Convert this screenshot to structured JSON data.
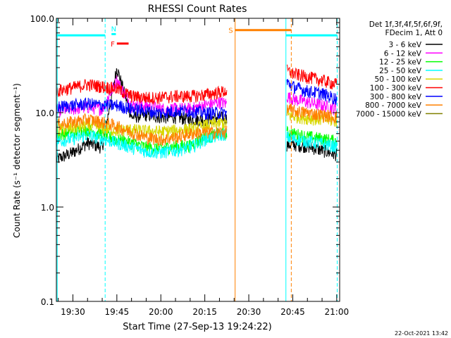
{
  "chart_data": {
    "type": "line",
    "title": "RHESSI Count Rates",
    "xlabel": "Start Time (27-Sep-13 19:24:22)",
    "ylabel": "Count Rate (s⁻¹ detector segment⁻¹)",
    "ylog": true,
    "ylim": [
      0.1,
      100
    ],
    "xlim": [
      "19:24:22",
      "21:01:00"
    ],
    "x_unit": "UT time (HH:MM)",
    "xticks": [
      "19:30",
      "19:45",
      "20:00",
      "20:15",
      "20:30",
      "20:45",
      "21:00"
    ],
    "yticks": [
      "0.1",
      "1.0",
      "10.0",
      "100.0"
    ],
    "grid": false,
    "legend_position": "right",
    "legend_header": [
      "Det 1f,3f,4f,5f,6f,9f,",
      "FDecim 1, Att 0"
    ],
    "timestamp": "22-Oct-2021 13:42",
    "series": [
      {
        "name": "3 - 6 keV",
        "color": "#000000",
        "x": [
          "19:24:22",
          "19:30",
          "19:35",
          "19:40",
          "19:45",
          "19:50",
          "19:55",
          "20:00",
          "20:05",
          "20:10",
          "20:15",
          "20:20",
          "20:22:30",
          "20:43",
          "20:45",
          "20:50",
          "20:55",
          "21:00"
        ],
        "y": [
          3.2,
          3.8,
          4.8,
          4.3,
          30,
          9,
          9.5,
          9,
          9,
          8.5,
          8.5,
          9,
          8.6,
          4.6,
          4.6,
          4.4,
          4,
          3.6
        ]
      },
      {
        "name": "6 - 12 keV",
        "color": "#ff00ff",
        "x": [
          "19:24:22",
          "19:30",
          "19:35",
          "19:40",
          "19:45",
          "19:50",
          "19:55",
          "20:00",
          "20:05",
          "20:10",
          "20:15",
          "20:20",
          "20:22:30",
          "20:43",
          "20:45",
          "20:50",
          "20:55",
          "21:00"
        ],
        "y": [
          10.5,
          11,
          11.5,
          11,
          22,
          12,
          12,
          11,
          11,
          11,
          12,
          13,
          12.5,
          15,
          14,
          13,
          12,
          11
        ]
      },
      {
        "name": "12 - 25 keV",
        "color": "#00ff00",
        "x": [
          "19:24:22",
          "19:30",
          "19:35",
          "19:40",
          "19:45",
          "19:50",
          "19:55",
          "20:00",
          "20:05",
          "20:10",
          "20:15",
          "20:20",
          "20:22:30",
          "20:43",
          "20:45",
          "20:50",
          "20:55",
          "21:00"
        ],
        "y": [
          5.8,
          6.2,
          6.6,
          6.0,
          5.2,
          4.8,
          4.3,
          4.2,
          4.4,
          4.5,
          5.5,
          6.0,
          6.1,
          6.2,
          6.0,
          5.6,
          5.3,
          5.0
        ]
      },
      {
        "name": "25 - 50 keV",
        "color": "#00ffff",
        "x": [
          "19:24:22",
          "19:30",
          "19:35",
          "19:40",
          "19:45",
          "19:50",
          "19:55",
          "20:00",
          "20:05",
          "20:10",
          "20:15",
          "20:20",
          "20:22:30",
          "20:43",
          "20:45",
          "20:50",
          "20:55",
          "21:00"
        ],
        "y": [
          5.0,
          5.3,
          5.8,
          5.3,
          4.8,
          4.3,
          3.9,
          3.8,
          4.0,
          4.3,
          5.2,
          5.8,
          6.0,
          5.5,
          5.3,
          5.0,
          4.7,
          4.4
        ]
      },
      {
        "name": "50 - 100 keV",
        "color": "#d8d800",
        "x": [
          "19:24:22",
          "19:30",
          "19:35",
          "19:40",
          "19:45",
          "19:50",
          "19:55",
          "20:00",
          "20:05",
          "20:10",
          "20:15",
          "20:20",
          "20:22:30",
          "20:43",
          "20:45",
          "20:50",
          "20:55",
          "21:00"
        ],
        "y": [
          6.5,
          7.0,
          7.4,
          6.9,
          6.5,
          6.6,
          6.4,
          6.3,
          6.5,
          6.7,
          7.3,
          7.8,
          7.9,
          9.5,
          9.2,
          8.8,
          8.5,
          8.2
        ]
      },
      {
        "name": "100 - 300 keV",
        "color": "#ff0000",
        "x": [
          "19:24:22",
          "19:30",
          "19:35",
          "19:40",
          "19:45",
          "19:50",
          "19:55",
          "20:00",
          "20:05",
          "20:10",
          "20:15",
          "20:20",
          "20:22:30",
          "20:43",
          "20:45",
          "20:50",
          "20:55",
          "21:00"
        ],
        "y": [
          17,
          18.5,
          20,
          19,
          18,
          15,
          14.5,
          14.5,
          15,
          15,
          15.5,
          16.5,
          17,
          28,
          26,
          24,
          22,
          20
        ]
      },
      {
        "name": "300 - 800 keV",
        "color": "#0000ff",
        "x": [
          "19:24:22",
          "19:30",
          "19:35",
          "19:40",
          "19:45",
          "19:50",
          "19:55",
          "20:00",
          "20:05",
          "20:10",
          "20:15",
          "20:20",
          "20:22:30",
          "20:43",
          "20:45",
          "20:50",
          "20:55",
          "21:00"
        ],
        "y": [
          11.5,
          12,
          12.5,
          12,
          12,
          11,
          10.5,
          10,
          10.5,
          10.5,
          10,
          10,
          10,
          21,
          19,
          17,
          16,
          14
        ]
      },
      {
        "name": "800 - 7000 keV",
        "color": "#ff8000",
        "x": [
          "19:24:22",
          "19:30",
          "19:35",
          "19:40",
          "19:45",
          "19:50",
          "19:55",
          "20:00",
          "20:05",
          "20:10",
          "20:15",
          "20:20",
          "20:22:30",
          "20:43",
          "20:45",
          "20:50",
          "20:55",
          "21:00"
        ],
        "y": [
          7.5,
          8,
          8.5,
          8,
          7.2,
          6.2,
          5.5,
          5.2,
          5.5,
          6,
          6.2,
          6.2,
          6.3,
          11,
          10.5,
          10,
          9.5,
          9
        ]
      },
      {
        "name": "7000 - 15000 keV",
        "color": "#808000",
        "x": [],
        "y": []
      }
    ],
    "annotations": [
      {
        "label": "N",
        "color": "#00ffff",
        "x_start": "19:43:10",
        "x_end": "19:44:40",
        "level": 68
      },
      {
        "label": "F",
        "color": "#ff0000",
        "x_start": "19:45:00",
        "x_end": "19:49:00",
        "level": 54
      },
      {
        "label": "S",
        "color": "#ff8000",
        "x_start": "20:25:20",
        "x_end": "20:44:30",
        "level": 75
      }
    ],
    "night_bars": [
      {
        "color": "#00ffff",
        "x_start": "19:24:22",
        "x_end": "19:41:00",
        "level": 66
      },
      {
        "color": "#00ffff",
        "x_start": "20:42:40",
        "x_end": "21:00:10",
        "level": 66
      }
    ],
    "vertical_lines": [
      {
        "x": "19:24:40",
        "color": "#00ffff",
        "style": "solid"
      },
      {
        "x": "19:41:00",
        "color": "#00ffff",
        "style": "dashed"
      },
      {
        "x": "20:25:20",
        "color": "#ff8000",
        "style": "solid"
      },
      {
        "x": "20:42:40",
        "color": "#00ffff",
        "style": "solid"
      },
      {
        "x": "20:44:30",
        "color": "#ff8000",
        "style": "dashed"
      },
      {
        "x": "21:00:10",
        "color": "#00ffff",
        "style": "dashed"
      }
    ]
  }
}
